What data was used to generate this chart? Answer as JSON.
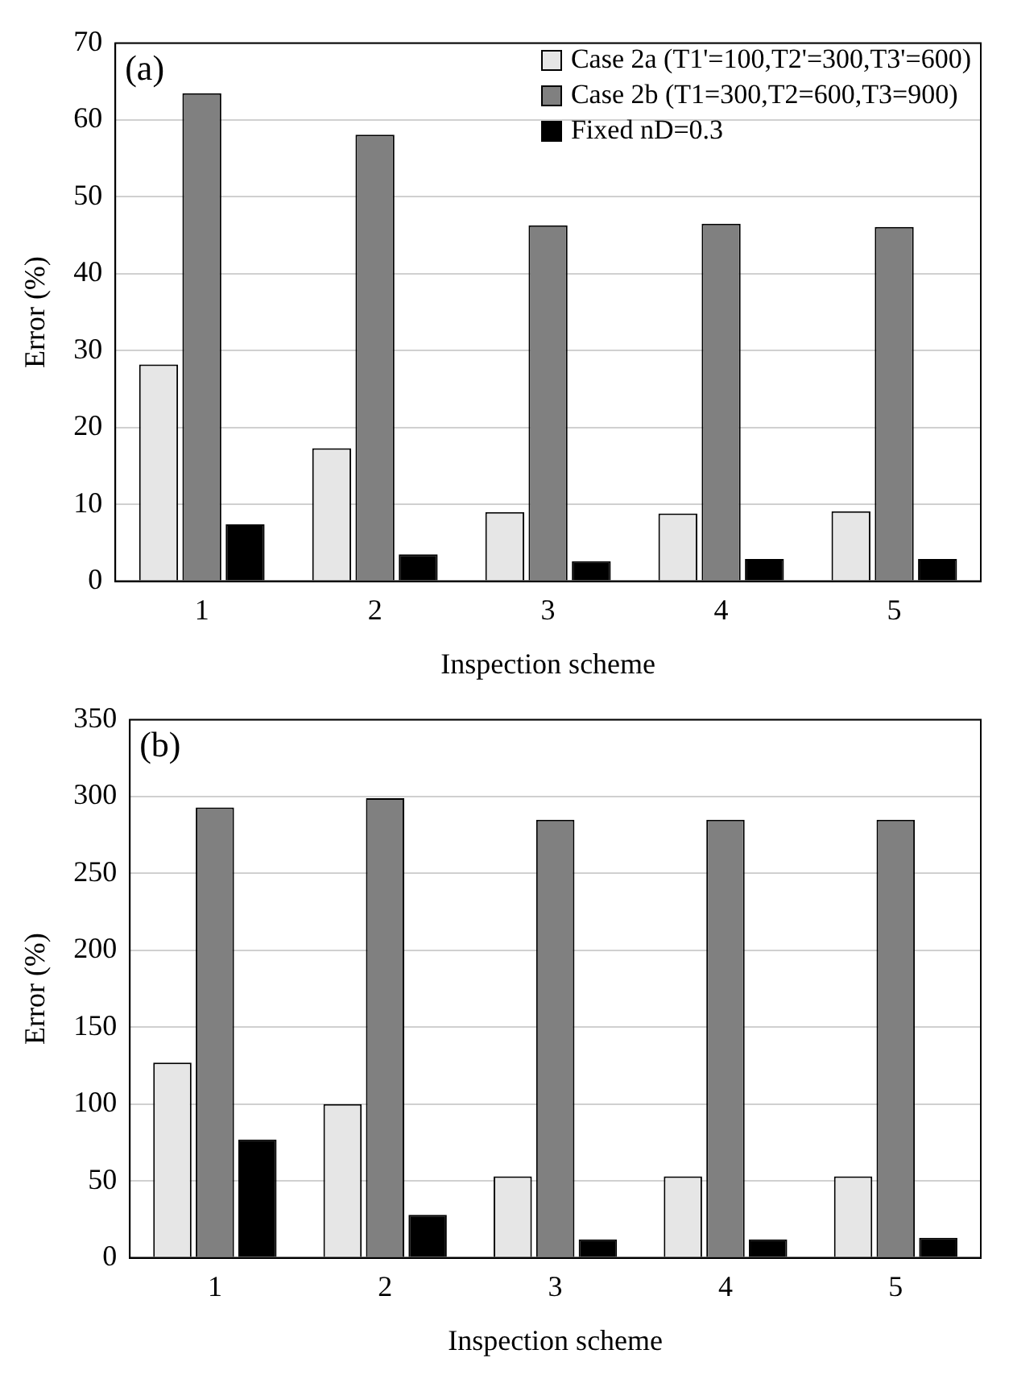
{
  "chart_data": [
    {
      "type": "bar",
      "categories": [
        "1",
        "2",
        "3",
        "4",
        "5"
      ],
      "xlabel": "Inspection scheme",
      "ylabel": "Error (%)",
      "ylim": [
        0,
        70
      ],
      "yticks": [
        0,
        10,
        20,
        30,
        40,
        50,
        60,
        70
      ],
      "grid": "y",
      "legend": "top right",
      "annotations": [
        "(a)"
      ],
      "series": [
        {
          "name": "Case 2a (T1'=100,T2'=300,T3'=600)",
          "color": "#e6e6e6",
          "values": [
            28.2,
            17.3,
            9,
            8.8,
            9.1
          ]
        },
        {
          "name": "Case 2b (T1=300,T2=600,T3=900)",
          "color": "#808080",
          "values": [
            63.5,
            58.1,
            46.3,
            46.5,
            46.1
          ]
        },
        {
          "name": "Fixed nD=0.3",
          "color": "#000000",
          "values": [
            7.4,
            3.5,
            2.6,
            2.9,
            2.9
          ]
        }
      ]
    },
    {
      "type": "bar",
      "categories": [
        "1",
        "2",
        "3",
        "4",
        "5"
      ],
      "xlabel": "Inspection scheme",
      "ylabel": "Error (%)",
      "ylim": [
        0,
        350
      ],
      "yticks": [
        0,
        50,
        100,
        150,
        200,
        250,
        300,
        350
      ],
      "grid": "y",
      "annotations": [
        "(b)"
      ],
      "series": [
        {
          "color": "#e6e6e6",
          "values": [
            127,
            100,
            53,
            53,
            53
          ]
        },
        {
          "color": "#808080",
          "values": [
            293,
            299,
            285,
            285,
            285
          ]
        },
        {
          "color": "#000000",
          "values": [
            77,
            28,
            12,
            12,
            13
          ]
        }
      ]
    }
  ]
}
